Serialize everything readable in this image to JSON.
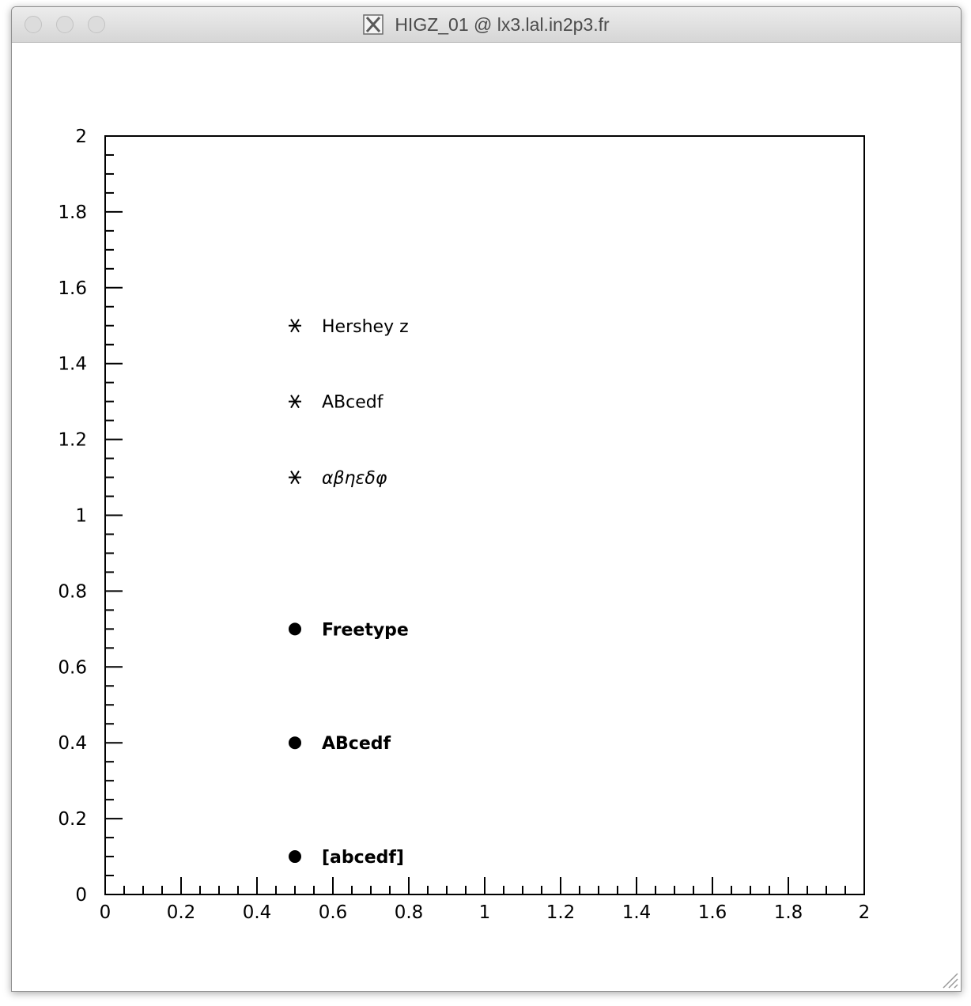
{
  "window": {
    "title": "HIGZ_01 @ lx3.lal.in2p3.fr",
    "icons": {
      "app": "x11-icon",
      "resize": "resize-grip-icon"
    }
  },
  "chart_data": {
    "type": "scatter",
    "xlim": [
      0,
      2
    ],
    "ylim": [
      0,
      2
    ],
    "x_ticks": [
      "0",
      "0.2",
      "0.4",
      "0.6",
      "0.8",
      "1",
      "1.2",
      "1.4",
      "1.6",
      "1.8",
      "2"
    ],
    "y_ticks": [
      "0",
      "0.2",
      "0.4",
      "0.6",
      "0.8",
      "1",
      "1.2",
      "1.4",
      "1.6",
      "1.8",
      "2"
    ],
    "grid": false,
    "points": [
      {
        "x": 0.5,
        "y": 1.5,
        "marker": "star",
        "label": "Hershey z",
        "style": "normal"
      },
      {
        "x": 0.5,
        "y": 1.3,
        "marker": "star",
        "label": "ABcedf",
        "style": "normal"
      },
      {
        "x": 0.5,
        "y": 1.1,
        "marker": "star",
        "label": "αβηεδφ",
        "style": "italic"
      },
      {
        "x": 0.5,
        "y": 0.7,
        "marker": "dot",
        "label": "Freetype",
        "style": "bold"
      },
      {
        "x": 0.5,
        "y": 0.4,
        "marker": "dot",
        "label": "ABcedf",
        "style": "bold"
      },
      {
        "x": 0.5,
        "y": 0.1,
        "marker": "dot",
        "label": "[abcedf]",
        "style": "bold"
      }
    ]
  }
}
